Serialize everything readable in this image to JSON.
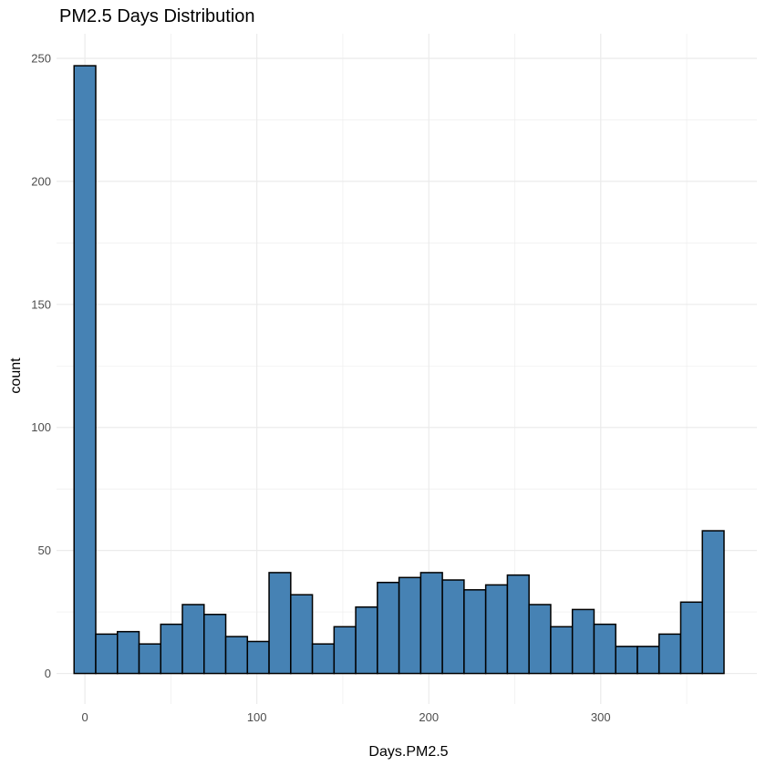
{
  "chart_data": {
    "type": "bar",
    "title": "PM2.5 Days Distribution",
    "xlabel": "Days.PM2.5",
    "ylabel": "count",
    "bin_width": 12.6,
    "bin_starts": [
      -6.3,
      6.3,
      18.9,
      31.5,
      44.1,
      56.7,
      69.3,
      81.9,
      94.5,
      107.1,
      119.7,
      132.3,
      144.9,
      157.5,
      170.1,
      182.7,
      195.3,
      207.9,
      220.5,
      233.1,
      245.7,
      258.3,
      270.9,
      283.5,
      296.1,
      308.7,
      321.3,
      333.9,
      346.5,
      359.1
    ],
    "values": [
      247,
      16,
      17,
      12,
      20,
      28,
      24,
      15,
      13,
      41,
      32,
      12,
      19,
      27,
      37,
      39,
      41,
      38,
      34,
      36,
      40,
      28,
      19,
      26,
      20,
      11,
      11,
      16,
      29,
      58
    ],
    "xlim": [
      -16.5,
      390.8
    ],
    "ylim": [
      -12.4,
      260
    ],
    "x_ticks": [
      0,
      100,
      200,
      300
    ],
    "x_tick_labels": [
      "0",
      "100",
      "200",
      "300"
    ],
    "y_ticks": [
      0,
      50,
      100,
      150,
      200,
      250
    ],
    "y_tick_labels": [
      "0",
      "50",
      "100",
      "150",
      "200",
      "250"
    ],
    "bar_fill": "#4682b4",
    "bar_stroke": "#000000",
    "grid": true,
    "grid_color": "#ebebeb",
    "legend": "none"
  }
}
